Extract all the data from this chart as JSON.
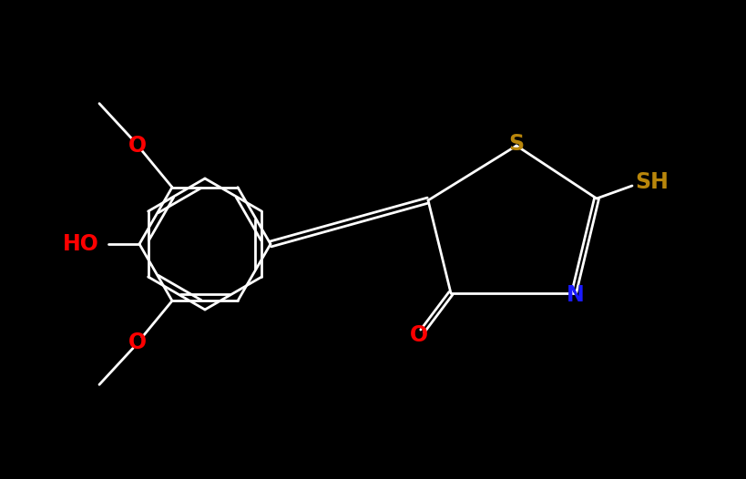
{
  "background_color": "#000000",
  "bond_color": "#ffffff",
  "atom_colors": {
    "O": "#ff0000",
    "N": "#1a1aff",
    "S_ring": "#b8860b",
    "S_sh": "#b8860b",
    "HO": "#ff0000",
    "C": "#ffffff"
  },
  "figsize": [
    8.19,
    5.26
  ],
  "dpi": 100,
  "lw": 2.0,
  "fs": 17
}
